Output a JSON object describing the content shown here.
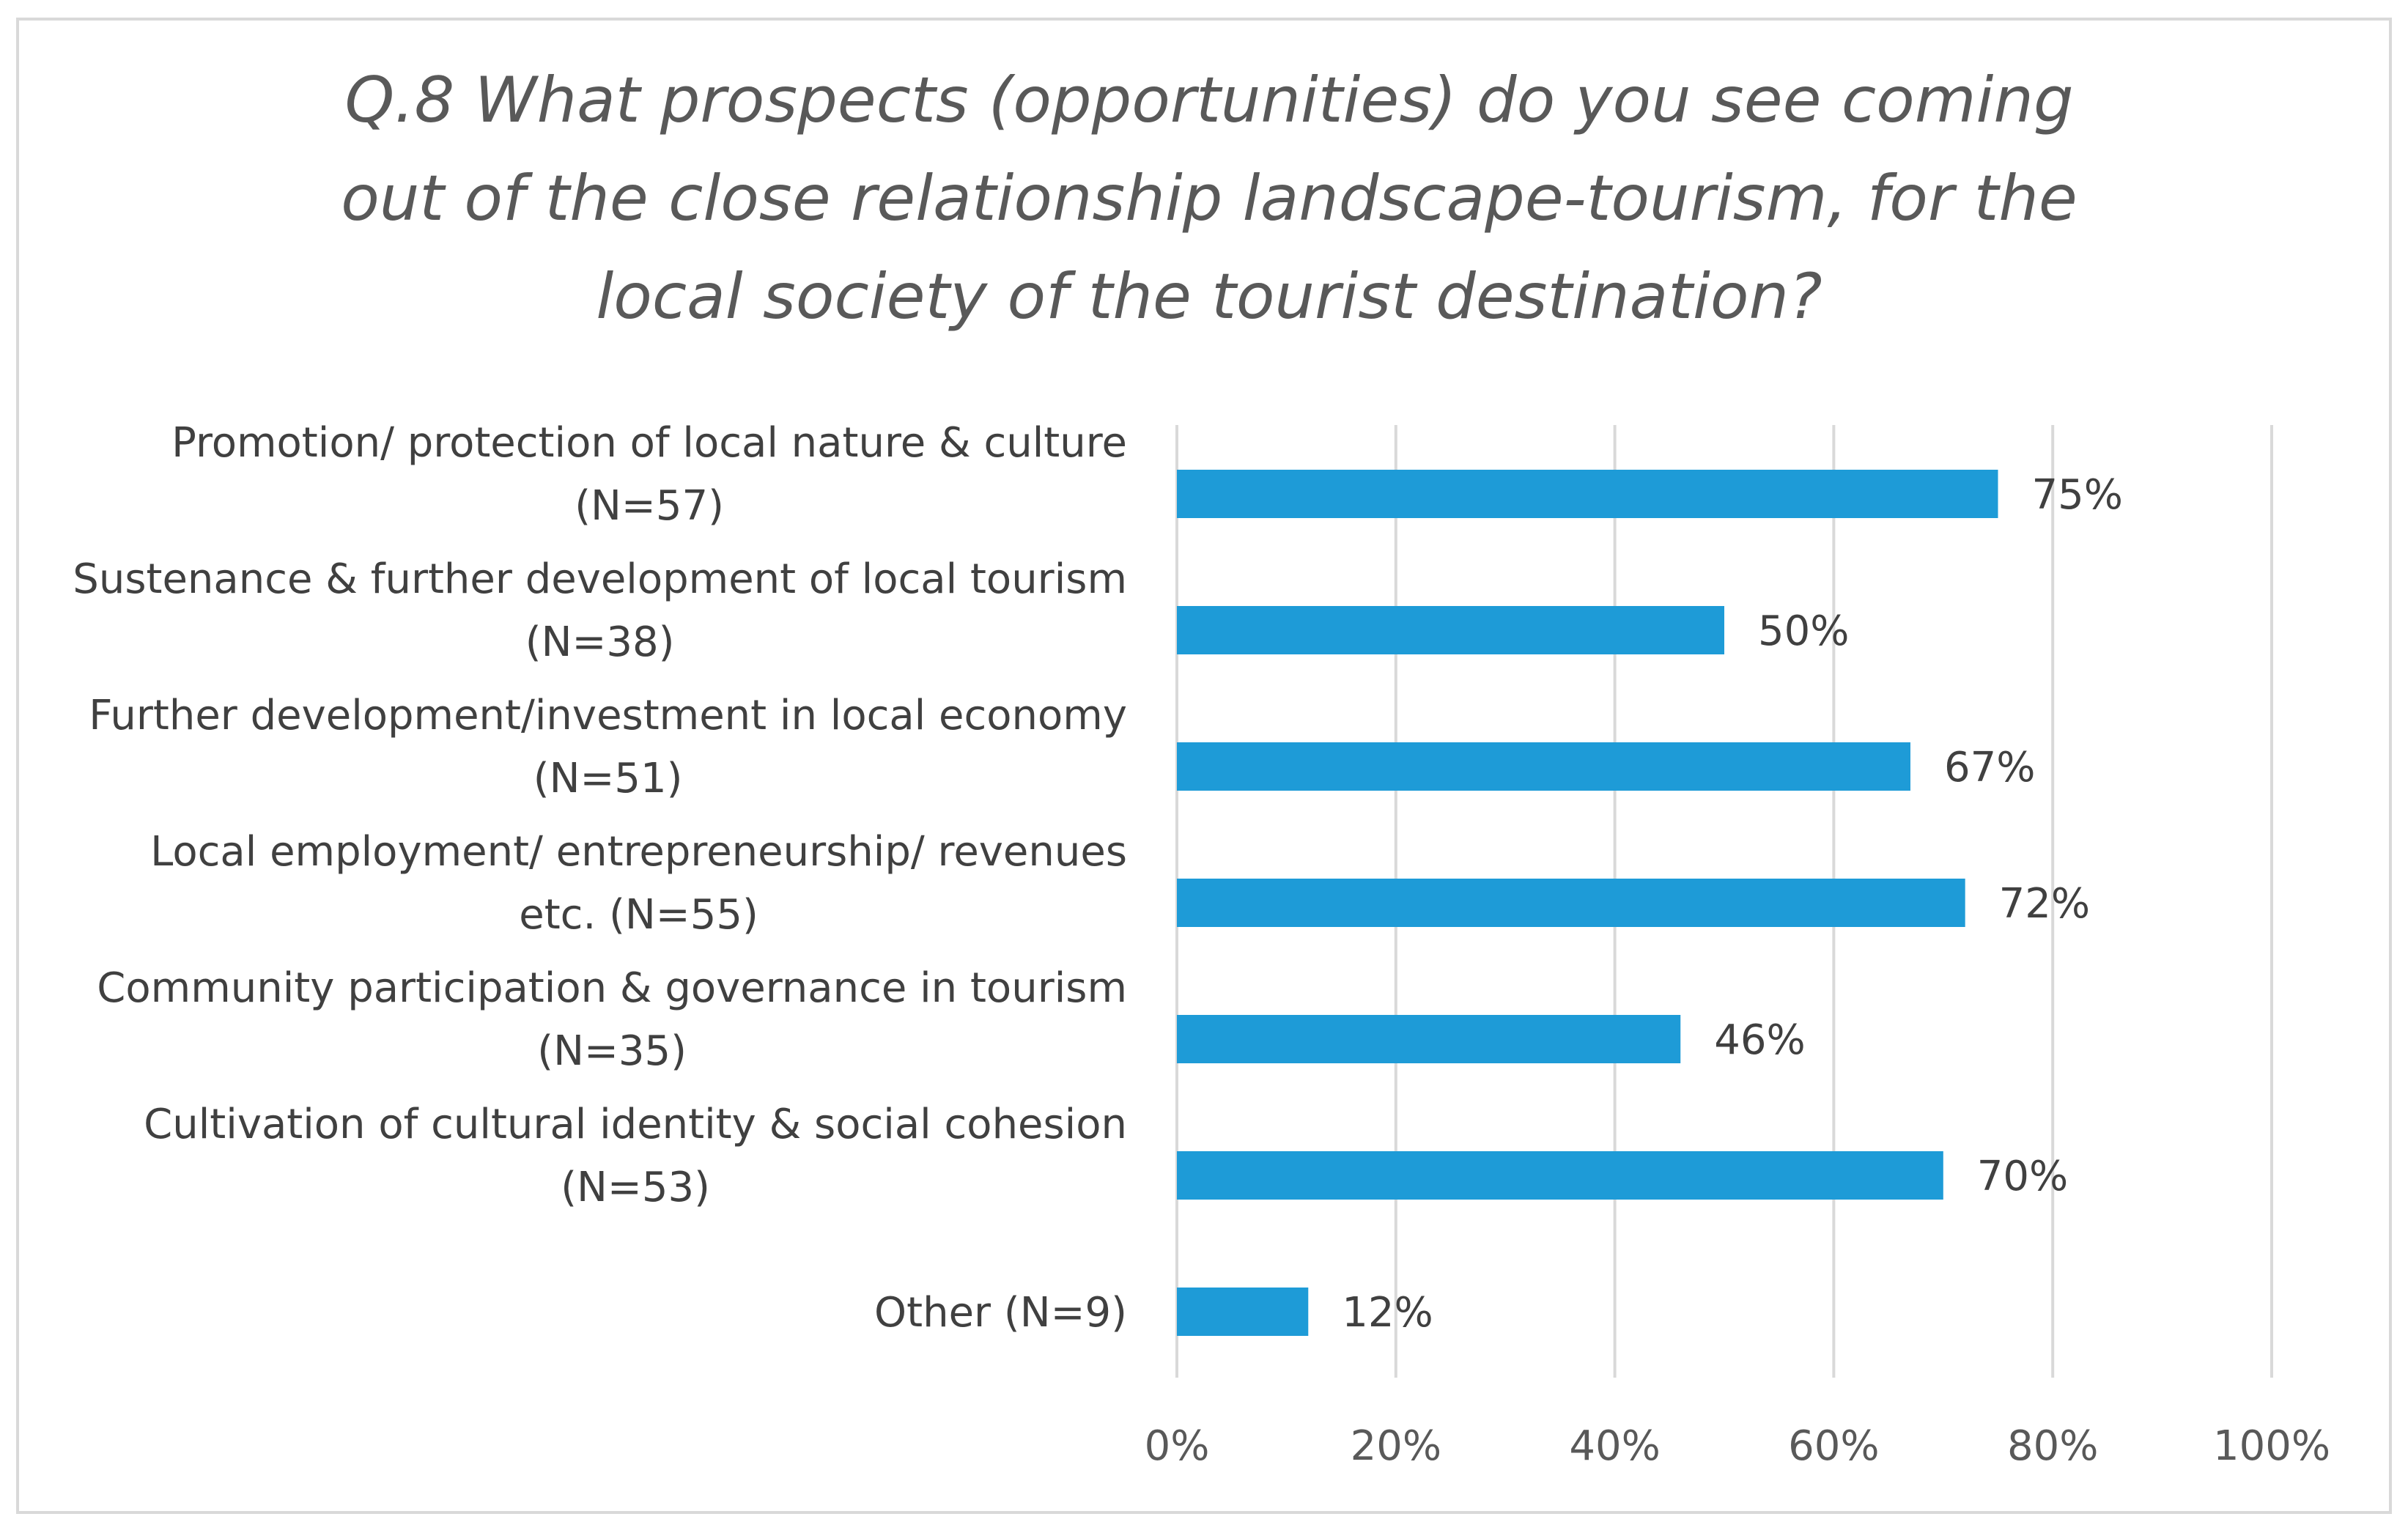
{
  "chart_data": {
    "type": "bar",
    "orientation": "horizontal",
    "title": "Q.8 What prospects (opportunities) do you see coming out of the close relationship landscape-tourism, for the local society of the tourist destination?",
    "title_lines": [
      "Q.8 What prospects (opportunities) do you see coming",
      "out of the close relationship landscape-tourism, for the",
      "local society of the tourist destination?"
    ],
    "categories": [
      [
        "Promotion/ protection of local nature & culture",
        "(N=57)"
      ],
      [
        "Sustenance & further development of local tourism",
        "(N=38)"
      ],
      [
        "Further development/investment in local economy",
        "(N=51)"
      ],
      [
        "Local employment/ entrepreneurship/ revenues",
        "etc. (N=55)"
      ],
      [
        "Community participation & governance in tourism",
        "(N=35)"
      ],
      [
        "Cultivation of cultural identity & social cohesion",
        "(N=53)"
      ],
      [
        "Other (N=9)"
      ]
    ],
    "values": [
      75,
      50,
      67,
      72,
      46,
      70,
      12
    ],
    "value_labels": [
      "75%",
      "50%",
      "67%",
      "72%",
      "46%",
      "70%",
      "12%"
    ],
    "xlim": [
      0,
      100
    ],
    "xticks": [
      0,
      20,
      40,
      60,
      80,
      100
    ],
    "xtick_labels": [
      "0%",
      "20%",
      "40%",
      "60%",
      "80%",
      "100%"
    ],
    "xlabel": "",
    "ylabel": "",
    "grid": "vertical",
    "legend": "none",
    "bar_color": "#1e9bd7",
    "grid_color": "#d9d9d9"
  }
}
